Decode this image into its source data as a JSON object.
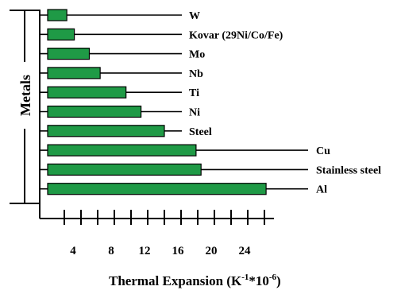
{
  "chart_data": {
    "type": "bar",
    "orientation": "horizontal",
    "xlabel_main": "Thermal Expansion (K",
    "xlabel_sup1": "-1",
    "xlabel_mid": "*10",
    "xlabel_sup2": "-6",
    "xlabel_end": ")",
    "group_label": "Metals",
    "categories": [
      "W",
      "Kovar (29Ni/Co/Fe)",
      "Mo",
      "Nb",
      "Ti",
      "Ni",
      "Steel",
      "Cu",
      "Stainless steel",
      "Al"
    ],
    "values": [
      2.3,
      3.2,
      5.0,
      6.3,
      9.4,
      11.2,
      14.0,
      17.8,
      18.4,
      26.2
    ],
    "xlim": [
      0,
      26.5
    ],
    "xticks": [
      4,
      8,
      12,
      16,
      20,
      24
    ],
    "bar_color": "#1f9a46",
    "grid": false,
    "legend": "none"
  }
}
